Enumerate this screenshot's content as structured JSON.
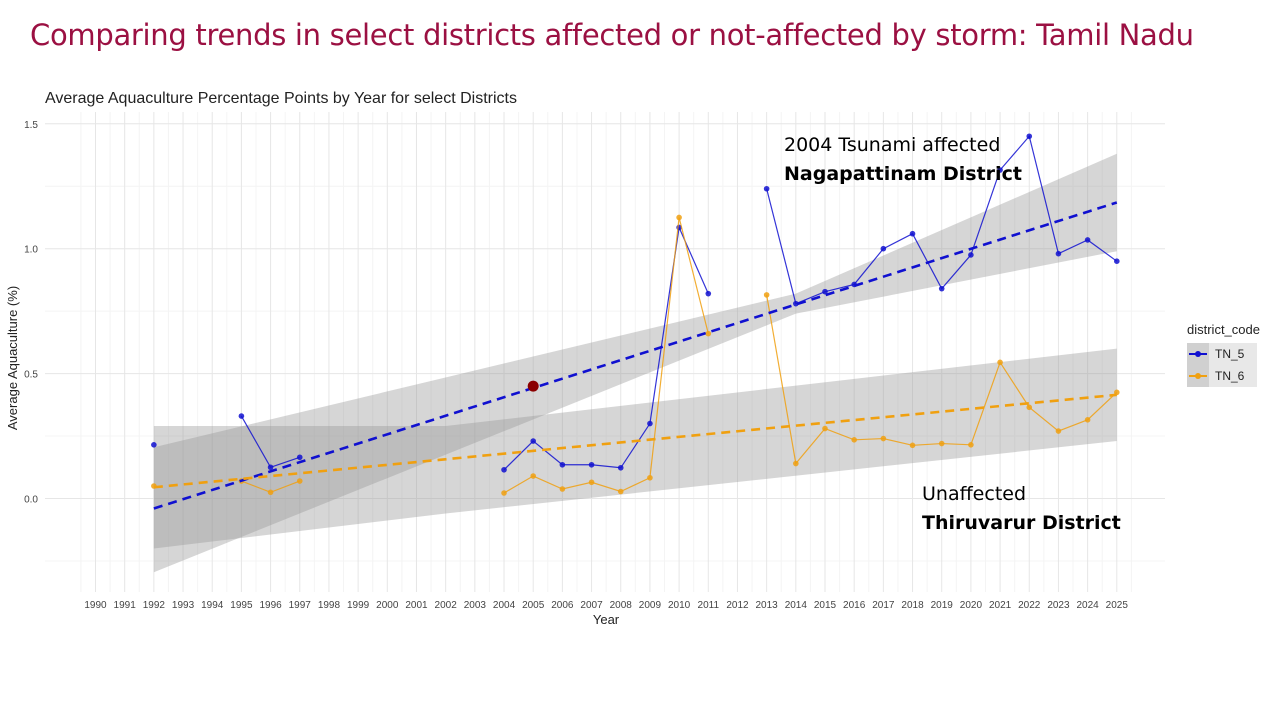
{
  "slide": {
    "title": "Comparing trends in select districts affected or not-affected by storm: Tamil Nadu"
  },
  "annotations": {
    "affected_line1": "2004 Tsunami affected",
    "affected_line2": "Nagapattinam District",
    "unaffected_line1": "Unaffected",
    "unaffected_line2": "Thiruvarur District"
  },
  "legend": {
    "title": "district_code",
    "items": [
      {
        "label": "TN_5",
        "color": "#1010d0"
      },
      {
        "label": "TN_6",
        "color": "#f0a010"
      }
    ]
  },
  "chart_data": {
    "type": "line",
    "title": "Average Aquaculture Percentage Points by Year for select Districts",
    "xlabel": "Year",
    "ylabel": "Average Aquaculture (%)",
    "x_ticks": [
      1990,
      1991,
      1992,
      1993,
      1994,
      1995,
      1996,
      1997,
      1998,
      1999,
      2000,
      2001,
      2002,
      2003,
      2004,
      2005,
      2006,
      2007,
      2008,
      2009,
      2010,
      2011,
      2012,
      2013,
      2014,
      2015,
      2016,
      2017,
      2018,
      2019,
      2020,
      2021,
      2022,
      2023,
      2024,
      2025
    ],
    "y_ticks": [
      0.0,
      0.5,
      1.0,
      1.5
    ],
    "y_tick_labels": [
      "0.0",
      "0.5",
      "1.0",
      "1.5"
    ],
    "xlim": [
      1989,
      1991
    ],
    "ylim": [
      -0.38,
      1.55
    ],
    "grid": true,
    "series": [
      {
        "name": "TN_5",
        "color": "#1010d0",
        "segments": [
          [
            [
              1992,
              0.215
            ]
          ],
          [
            [
              1995,
              0.33
            ],
            [
              1996,
              0.125
            ],
            [
              1997,
              0.165
            ]
          ],
          [
            [
              2004,
              0.115
            ],
            [
              2005,
              0.23
            ],
            [
              2006,
              0.135
            ],
            [
              2007,
              0.135
            ],
            [
              2008,
              0.123
            ],
            [
              2009,
              0.3
            ],
            [
              2010,
              1.085
            ],
            [
              2011,
              0.82
            ]
          ],
          [
            [
              2013,
              1.24
            ],
            [
              2014,
              0.78
            ],
            [
              2015,
              0.828
            ],
            [
              2016,
              0.857
            ],
            [
              2017,
              1.0
            ],
            [
              2018,
              1.06
            ],
            [
              2019,
              0.84
            ],
            [
              2020,
              0.975
            ],
            [
              2021,
              1.315
            ],
            [
              2022,
              1.45
            ],
            [
              2023,
              0.98
            ],
            [
              2024,
              1.035
            ],
            [
              2025,
              0.95
            ]
          ]
        ],
        "trend": {
          "x": [
            1992,
            2025
          ],
          "y": [
            -0.04,
            1.185
          ]
        },
        "band": {
          "x": [
            1992,
            2014,
            2025
          ],
          "upper": [
            0.205,
            0.82,
            1.38
          ],
          "lower": [
            -0.295,
            0.74,
            0.99
          ]
        }
      },
      {
        "name": "TN_6",
        "color": "#f0a010",
        "segments": [
          [
            [
              1992,
              0.05
            ]
          ],
          [
            [
              1995,
              0.07
            ],
            [
              1996,
              0.025
            ],
            [
              1997,
              0.07
            ]
          ],
          [
            [
              2004,
              0.022
            ],
            [
              2005,
              0.09
            ],
            [
              2006,
              0.038
            ],
            [
              2007,
              0.065
            ],
            [
              2008,
              0.028
            ],
            [
              2009,
              0.083
            ],
            [
              2010,
              1.125
            ],
            [
              2011,
              0.66
            ]
          ],
          [
            [
              2013,
              0.815
            ],
            [
              2014,
              0.14
            ],
            [
              2015,
              0.28
            ],
            [
              2016,
              0.235
            ],
            [
              2017,
              0.24
            ],
            [
              2018,
              0.213
            ],
            [
              2019,
              0.22
            ],
            [
              2020,
              0.215
            ],
            [
              2021,
              0.545
            ],
            [
              2022,
              0.365
            ],
            [
              2023,
              0.27
            ],
            [
              2024,
              0.315
            ],
            [
              2025,
              0.425
            ]
          ]
        ],
        "trend": {
          "x": [
            1992,
            2025
          ],
          "y": [
            0.045,
            0.415
          ]
        },
        "band": {
          "x": [
            1992,
            2002,
            2025
          ],
          "upper": [
            0.29,
            0.29,
            0.6
          ],
          "lower": [
            -0.2,
            -0.06,
            0.23
          ]
        }
      }
    ],
    "highlight_point": {
      "x": 2005,
      "y": 0.45,
      "color": "#8b0000"
    }
  }
}
